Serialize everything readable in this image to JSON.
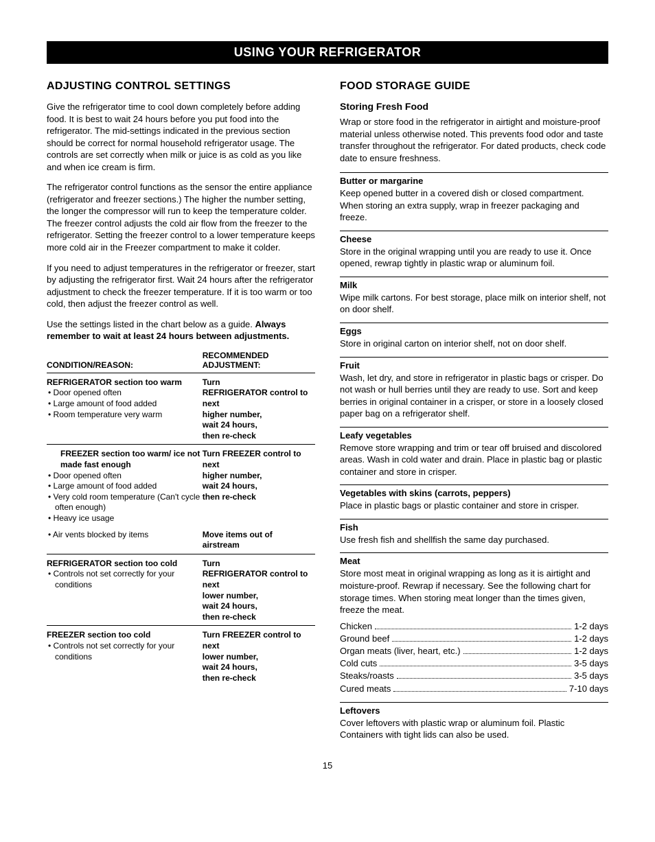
{
  "banner": "USING YOUR REFRIGERATOR",
  "page_number": "15",
  "left": {
    "heading": "ADJUSTING CONTROL SETTINGS",
    "p1": "Give the refrigerator time to cool down completely before adding food. It is best to wait 24 hours before you put food into the refrigerator. The mid-settings indicated in the previous section should be correct for normal household refrigerator usage. The controls are set correctly when milk or juice is as cold as you like and when ice cream is firm.",
    "p2": "The refrigerator control functions as the sensor the entire appliance (refrigerator and freezer sections.) The higher the number setting, the longer the compressor will run to keep the temperature colder. The freezer control adjusts the cold air flow from the freezer to the refrigerator. Setting the freezer control to a lower temperature keeps more cold air in the Freezer compartment to make it colder.",
    "p3": "If you need to adjust temperatures in the refrigerator or freezer, start by adjusting the refrigerator first. Wait 24 hours after the refrigerator adjustment to check the freezer temperature. If it is too warm or too cold, then adjust the freezer control as well.",
    "p4a": "Use the settings listed in the chart below as a guide.",
    "p4b": "Always remember to wait at least 24 hours between adjustments.",
    "table": {
      "head_left": "CONDITION/REASON:",
      "head_right_1": "RECOMMENDED",
      "head_right_2": "ADJUSTMENT:",
      "groups": [
        {
          "cond_head": "REFRIGERATOR section too warm",
          "rec_head": "Turn REFRIGERATOR control to next higher number, wait 24 hours, then re-check",
          "bullets": [
            "Door opened often",
            "Large amount of food added",
            "Room temperature very warm"
          ],
          "indent": true
        },
        {
          "cond_head": "FREEZER section too warm/ ice not made fast enough",
          "rec_head": "Turn FREEZER control to next higher number, wait 24 hours, then re-check",
          "bullets": [
            "Door opened often",
            "Large amount of food added",
            "Very cold room temperature (Can't cycle often enough)",
            "Heavy ice usage"
          ],
          "extra_bullet": "Air vents blocked by items",
          "extra_rec": "Move items out of airstream",
          "indent": false
        },
        {
          "cond_head": "REFRIGERATOR section too cold",
          "rec_head": "Turn REFRIGERATOR control to next lower number, wait 24 hours, then re-check",
          "bullets": [
            "Controls not set correctly for your conditions"
          ],
          "indent": false
        },
        {
          "cond_head": "FREEZER section too cold",
          "rec_head": "Turn FREEZER control to next lower number, wait 24 hours, then re-check",
          "bullets": [
            "Controls not set correctly for your conditions"
          ],
          "indent": false
        }
      ]
    }
  },
  "right": {
    "heading": "FOOD STORAGE GUIDE",
    "sub": "Storing Fresh Food",
    "intro": "Wrap or store food in the refrigerator in airtight and moisture-proof material unless otherwise noted. This prevents food odor and taste transfer throughout the refrigerator. For dated products, check code date to ensure freshness.",
    "items": [
      {
        "h": "Butter or margarine",
        "t": "Keep opened butter in a covered dish or closed compartment. When storing an extra supply, wrap in freezer packaging and freeze."
      },
      {
        "h": "Cheese",
        "t": "Store in the original wrapping until you are ready to use it. Once opened, rewrap tightly in plastic wrap or aluminum foil."
      },
      {
        "h": "Milk",
        "t": "Wipe milk cartons. For best storage, place milk on interior shelf, not on door shelf."
      },
      {
        "h": "Eggs",
        "t": "Store in original carton on interior shelf, not on door shelf."
      },
      {
        "h": "Fruit",
        "t": "Wash, let dry, and store in refrigerator in plastic bags or crisper. Do not wash or hull berries until they are ready to use. Sort and keep berries in original container in a crisper, or store in a loosely closed paper bag on a refrigerator shelf."
      },
      {
        "h": "Leafy vegetables",
        "t": "Remove store wrapping and trim or tear off bruised and discolored areas. Wash in cold water and drain. Place in plastic bag or plastic container and store in crisper."
      },
      {
        "h": "Vegetables with skins (carrots, peppers)",
        "t": "Place in plastic bags or plastic container and store in crisper."
      },
      {
        "h": "Fish",
        "t": "Use fresh fish and shellfish the same day purchased."
      },
      {
        "h": "Meat",
        "t": "Store most meat in original wrapping as long as it is airtight and moisture-proof. Rewrap if necessary. See the following chart for storage times. When storing meat longer than the times given, freeze the meat."
      },
      {
        "h": "Leftovers",
        "t": "Cover leftovers with plastic wrap or aluminum foil. Plastic Containers with tight lids can also be used."
      }
    ],
    "meat_table": [
      {
        "l": "Chicken",
        "v": "1-2 days"
      },
      {
        "l": "Ground beef",
        "v": "1-2 days"
      },
      {
        "l": "Organ meats (liver, heart, etc.)",
        "v": "1-2 days"
      },
      {
        "l": "Cold cuts",
        "v": "3-5 days"
      },
      {
        "l": "Steaks/roasts",
        "v": "3-5 days"
      },
      {
        "l": "Cured meats",
        "v": "7-10 days"
      }
    ]
  }
}
